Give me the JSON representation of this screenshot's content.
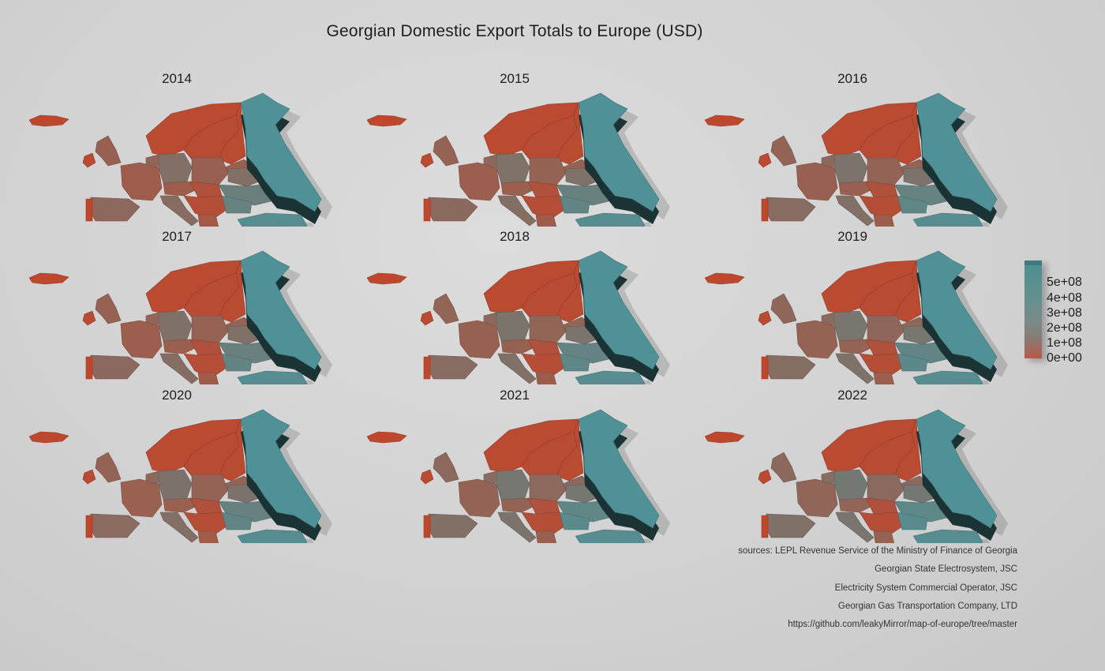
{
  "title": "Georgian Domestic Export Totals to Europe (USD)",
  "years": [
    "2014",
    "2015",
    "2016",
    "2017",
    "2018",
    "2019",
    "2020",
    "2021",
    "2022"
  ],
  "legend": {
    "ticks": [
      "5e+08",
      "4e+08",
      "3e+08",
      "2e+08",
      "1e+08",
      "0e+00"
    ],
    "low_color": "#c0462c",
    "high_color": "#4f9196"
  },
  "sources": [
    "sources: LEPL Revenue Service of the Ministry of Finance of Georgia",
    "Georgian State Electrosystem, JSC",
    "Electricity System Commercial Operator, JSC",
    "Georgian Gas Transportation Company, LTD",
    "https://github.com/leakyMirror/map-of-europe/tree/master"
  ]
}
